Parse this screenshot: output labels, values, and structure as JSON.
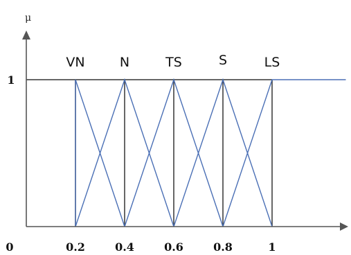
{
  "chart_data": {
    "type": "line",
    "title": "",
    "xlabel": "",
    "ylabel": "μ",
    "xlim": [
      0,
      1.3
    ],
    "ylim": [
      0,
      1.2
    ],
    "x_ticks": [
      "0",
      "0.2",
      "0.4",
      "0.6",
      "0.8",
      "1"
    ],
    "x_tick_values": [
      0,
      0.2,
      0.4,
      0.6,
      0.8,
      1
    ],
    "y_ticks": [
      "1"
    ],
    "y_tick_values": [
      1
    ],
    "grid": false,
    "colors": {
      "series": "#4a6fb5",
      "frame": "#333333",
      "axis": "#555555"
    },
    "series": [
      {
        "label": "VN",
        "x": [
          0.2,
          0.2,
          0.4
        ],
        "y": [
          0,
          1,
          0
        ]
      },
      {
        "label": "N",
        "x": [
          0.2,
          0.4,
          0.6
        ],
        "y": [
          0,
          1,
          0
        ]
      },
      {
        "label": "TS",
        "x": [
          0.4,
          0.6,
          0.8
        ],
        "y": [
          0,
          1,
          0
        ]
      },
      {
        "label": "S",
        "x": [
          0.6,
          0.8,
          1.0
        ],
        "y": [
          0,
          1,
          0
        ]
      },
      {
        "label": "LS",
        "x": [
          0.8,
          1.0,
          1.3
        ],
        "y": [
          0,
          1,
          1
        ]
      }
    ],
    "vertical_lines_x": [
      0.2,
      0.4,
      0.6,
      0.8,
      1.0
    ]
  }
}
